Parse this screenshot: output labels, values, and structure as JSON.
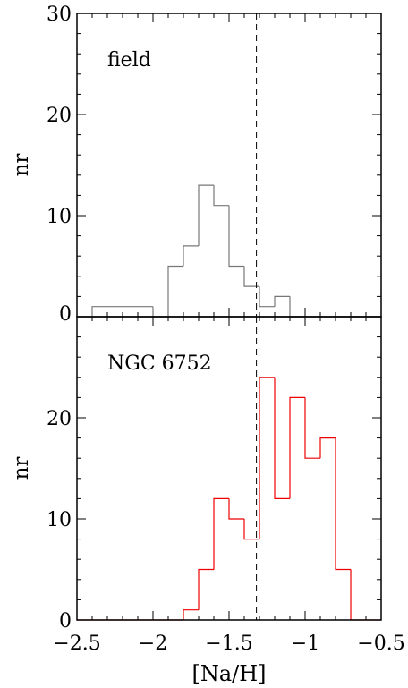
{
  "chart_data": [
    {
      "type": "histogram",
      "annotation": "field",
      "ylabel": "nr",
      "xlim": [
        -2.5,
        -0.5
      ],
      "ylim": [
        0,
        30
      ],
      "y_ticks": [
        0,
        10,
        20,
        30
      ],
      "y_tick_labels": [
        "0",
        "10",
        "20",
        "30"
      ],
      "bin_edges": [
        -2.4,
        -2.3,
        -2.2,
        -2.1,
        -2.0,
        -1.9,
        -1.8,
        -1.7,
        -1.6,
        -1.5,
        -1.4,
        -1.3,
        -1.2,
        -1.1,
        -1.0,
        -0.9,
        -0.8,
        -0.7,
        -0.6,
        -0.5
      ],
      "counts": [
        1,
        1,
        1,
        1,
        0,
        5,
        7,
        13,
        11,
        5,
        3,
        1,
        2,
        0,
        0,
        0,
        0,
        0,
        0
      ],
      "color": "#777777",
      "vline_x": -1.32
    },
    {
      "type": "histogram",
      "annotation": "NGC 6752",
      "ylabel": "nr",
      "xlabel": "[Na/H]",
      "xlim": [
        -2.5,
        -0.5
      ],
      "ylim": [
        0,
        30
      ],
      "x_ticks": [
        -2.5,
        -2,
        -1.5,
        -1,
        -0.5
      ],
      "x_tick_labels": [
        "−2.5",
        "−2",
        "−1.5",
        "−1",
        "−0.5"
      ],
      "y_ticks": [
        0,
        10,
        20
      ],
      "y_tick_labels": [
        "0",
        "10",
        "20"
      ],
      "bin_edges": [
        -2.5,
        -2.4,
        -2.3,
        -2.2,
        -2.1,
        -2.0,
        -1.9,
        -1.8,
        -1.7,
        -1.6,
        -1.5,
        -1.4,
        -1.3,
        -1.2,
        -1.1,
        -1.0,
        -0.9,
        -0.8,
        -0.7,
        -0.6,
        -0.5
      ],
      "counts": [
        0,
        0,
        0,
        0,
        0,
        0,
        0,
        1,
        5,
        12,
        10,
        8,
        24,
        12,
        22,
        16,
        18,
        5,
        0,
        0
      ],
      "color": "#ee0000",
      "vline_x": -1.32
    }
  ]
}
